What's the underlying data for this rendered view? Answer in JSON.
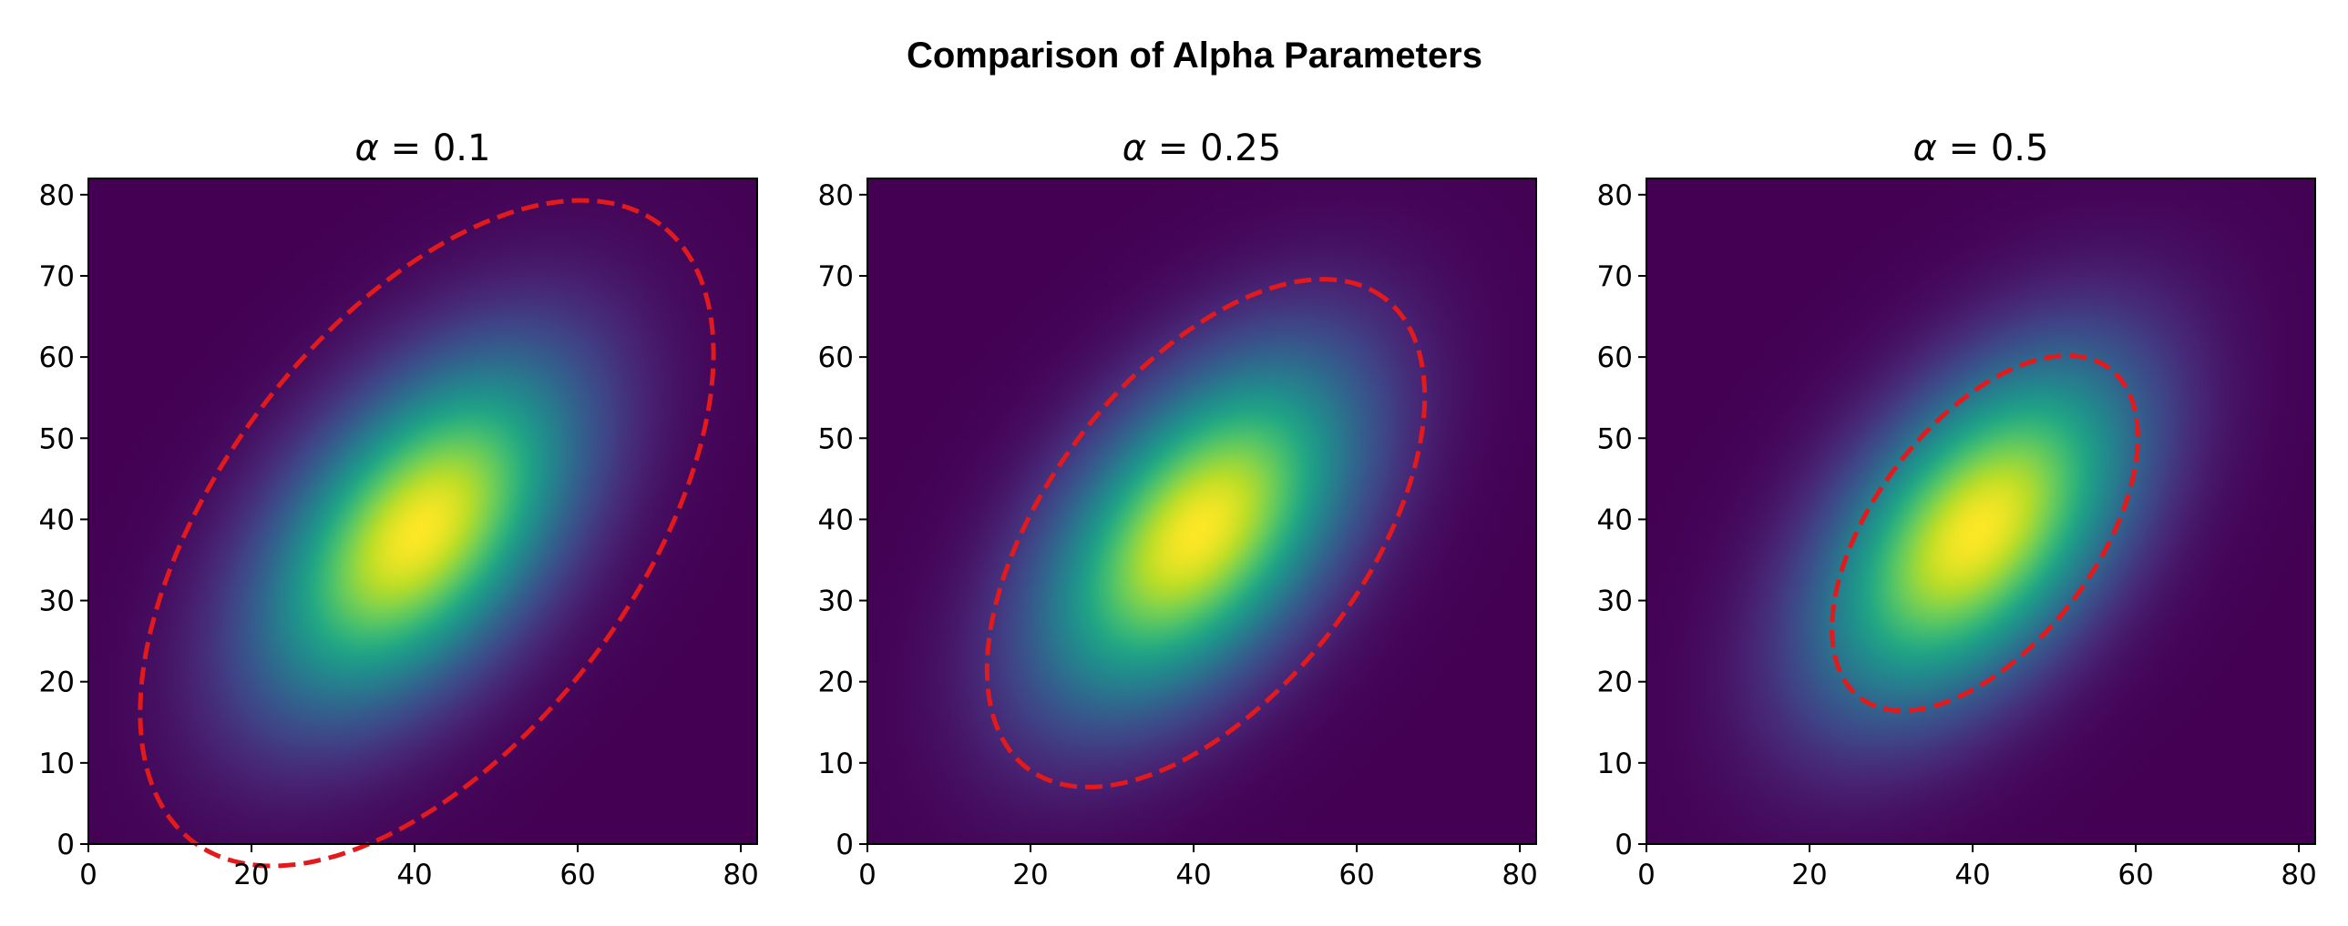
{
  "figure": {
    "title": "Comparison of Alpha Parameters"
  },
  "chart_data": [
    {
      "type": "heatmap",
      "title": "α = 0.1",
      "title_symbol": "α",
      "title_eq": " = 0.1",
      "xlim": [
        0,
        82
      ],
      "ylim": [
        0,
        82
      ],
      "xticks": [
        0,
        20,
        40,
        60,
        80
      ],
      "yticks": [
        0,
        10,
        20,
        30,
        40,
        50,
        60,
        70,
        80
      ],
      "grid_size": 82,
      "colormap": "viridis",
      "gaussian": {
        "mean": [
          40.5,
          38.5
        ],
        "cov": [
          [
            170,
            95
          ],
          [
            95,
            210
          ]
        ]
      },
      "ellipse": {
        "center": [
          41.5,
          38.3
        ],
        "semi_major": 47.6,
        "semi_minor": 25.5,
        "angle_deg": 53,
        "color": "#e31a1c",
        "style": "dashed"
      }
    },
    {
      "type": "heatmap",
      "title": "α = 0.25",
      "title_symbol": "α",
      "title_eq": " = 0.25",
      "xlim": [
        0,
        82
      ],
      "ylim": [
        0,
        82
      ],
      "xticks": [
        0,
        20,
        40,
        60,
        80
      ],
      "yticks": [
        0,
        10,
        20,
        30,
        40,
        50,
        60,
        70,
        80
      ],
      "grid_size": 82,
      "colormap": "viridis",
      "gaussian": {
        "mean": [
          40.5,
          38.5
        ],
        "cov": [
          [
            170,
            95
          ],
          [
            95,
            210
          ]
        ]
      },
      "ellipse": {
        "center": [
          41.5,
          38.3
        ],
        "semi_major": 36.3,
        "semi_minor": 19.5,
        "angle_deg": 53,
        "color": "#e31a1c",
        "style": "dashed"
      }
    },
    {
      "type": "heatmap",
      "title": "α = 0.5",
      "title_symbol": "α",
      "title_eq": " = 0.5",
      "xlim": [
        0,
        82
      ],
      "ylim": [
        0,
        82
      ],
      "xticks": [
        0,
        20,
        40,
        60,
        80
      ],
      "yticks": [
        0,
        10,
        20,
        30,
        40,
        50,
        60,
        70,
        80
      ],
      "grid_size": 82,
      "colormap": "viridis",
      "gaussian": {
        "mean": [
          40.5,
          38.5
        ],
        "cov": [
          [
            170,
            95
          ],
          [
            95,
            210
          ]
        ]
      },
      "ellipse": {
        "center": [
          41.5,
          38.3
        ],
        "semi_major": 25.4,
        "semi_minor": 13.6,
        "angle_deg": 53,
        "color": "#e31a1c",
        "style": "dashed"
      }
    }
  ]
}
